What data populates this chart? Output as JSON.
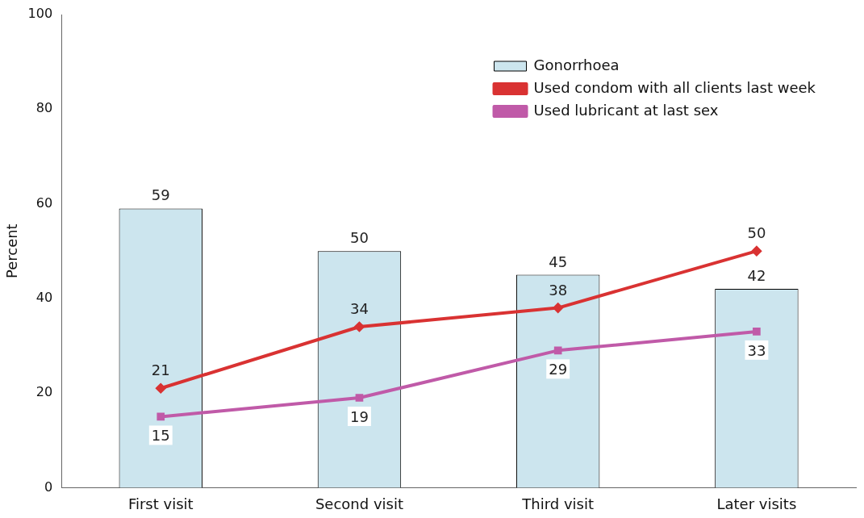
{
  "chart_data": {
    "type": "bar",
    "ylabel": "Percent",
    "categories": [
      "First visit",
      "Second visit",
      "Third visit",
      "Later visits"
    ],
    "series": [
      {
        "name": "Gonorrhoea",
        "color": "#cce5ee",
        "values": [
          59,
          50,
          45,
          42
        ]
      },
      {
        "name": "Used condom with all clients last week",
        "type": "line",
        "color": "#d93232",
        "marker": "diamond",
        "values": [
          21,
          34,
          38,
          50
        ]
      },
      {
        "name": "Used lubricant at last sex",
        "type": "line",
        "color": "#c05aa8",
        "marker": "square",
        "values": [
          15,
          19,
          29,
          33
        ]
      }
    ],
    "ylim": [
      0,
      100
    ],
    "yticks": [
      0,
      20,
      40,
      60,
      80,
      100
    ],
    "grid": false,
    "legend": "top right",
    "data_labels": true
  }
}
